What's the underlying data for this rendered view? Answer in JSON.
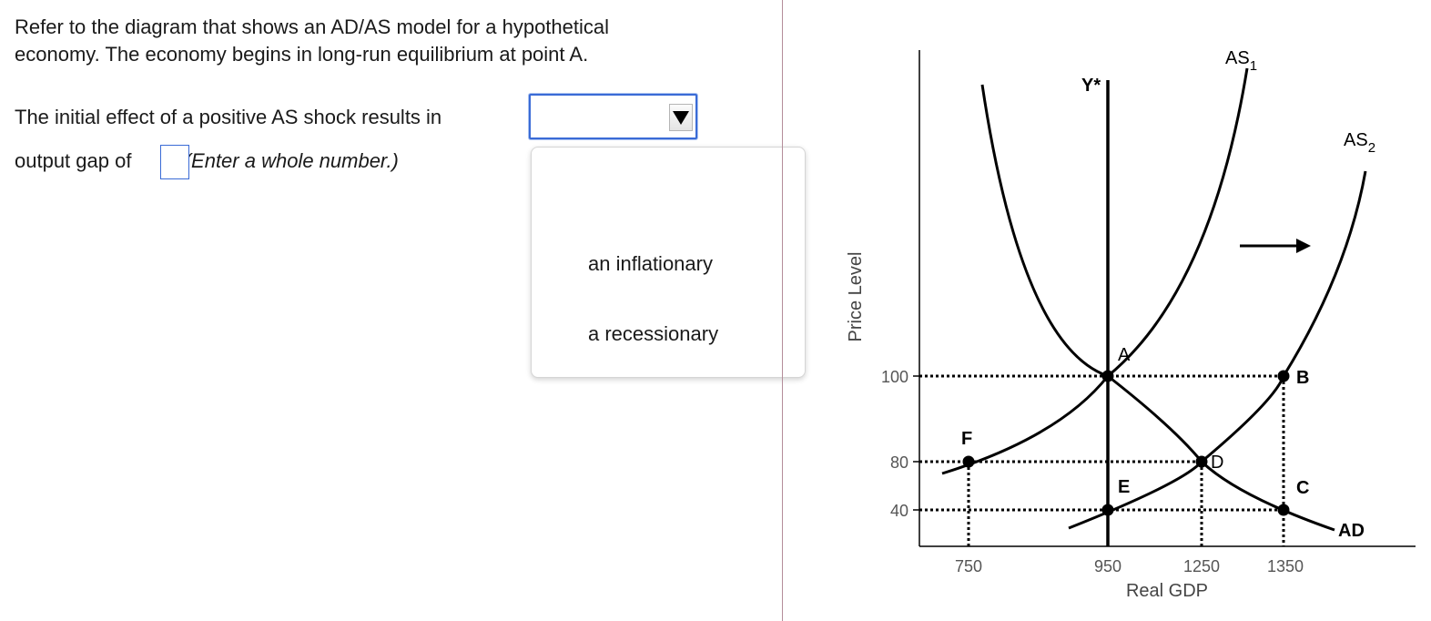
{
  "question": {
    "line1": "Refer to the diagram that shows an AD/AS model for a hypothetical",
    "line2": "economy. The economy begins in long-run equilibrium at point A.",
    "line3_prefix": "The initial effect of a positive AS shock results in",
    "line4_prefix": "output gap of",
    "line4_punct": ".",
    "line4_hint": "(Enter a whole number.)"
  },
  "select": {
    "value": "",
    "options": [
      "an inflationary",
      "a recessionary"
    ]
  },
  "numeric_input": {
    "value": ""
  },
  "colors": {
    "focus_blue": "#3a6bd6",
    "divider": "#b48d9a",
    "curve": "#000000"
  },
  "chart_data": {
    "type": "line",
    "title": "",
    "xlabel": "Real GDP",
    "ylabel": "Price Level",
    "x_ticks": [
      750,
      950,
      1250,
      1350
    ],
    "y_ticks": [
      40,
      80,
      100
    ],
    "lrfas_label": "Y*",
    "series": [
      {
        "name": "AS1",
        "label_main": "AS",
        "label_sub": "1"
      },
      {
        "name": "AS2",
        "label_main": "AS",
        "label_sub": "2"
      },
      {
        "name": "AD",
        "label_main": "AD",
        "label_sub": ""
      }
    ],
    "points": [
      {
        "label": "A",
        "x": 950,
        "y": 100
      },
      {
        "label": "B",
        "x": 1350,
        "y": 100
      },
      {
        "label": "C",
        "x": 1350,
        "y": 40
      },
      {
        "label": "D",
        "x": 1250,
        "y": 80
      },
      {
        "label": "E",
        "x": 950,
        "y": 40
      },
      {
        "label": "F",
        "x": 750,
        "y": 80
      }
    ],
    "annotations": [
      "shift arrow pointing right from AS1 to AS2"
    ]
  }
}
